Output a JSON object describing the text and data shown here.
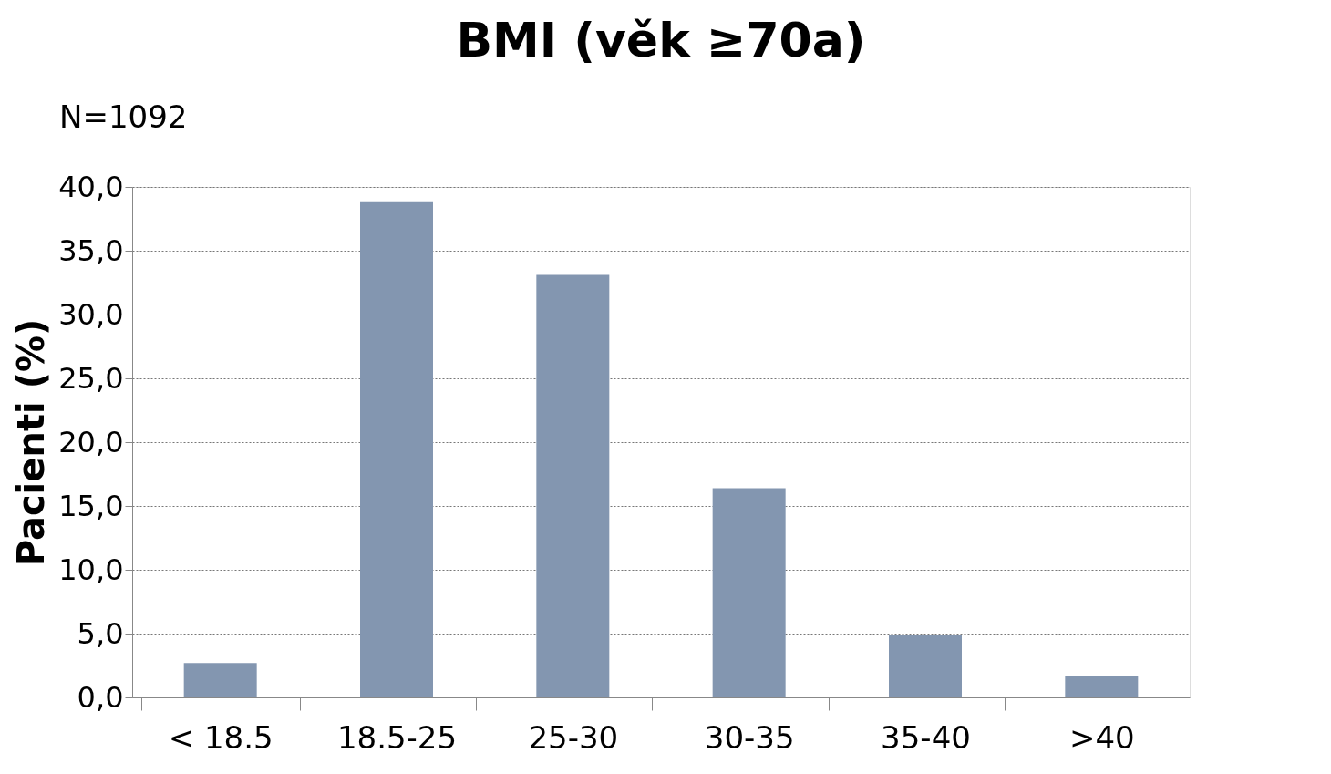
{
  "chart_data": {
    "type": "bar",
    "title": "BMI (věk ≥70a)",
    "ylabel": "Pacienti (%)",
    "annotations": [
      "N=1092"
    ],
    "categories": [
      "< 18.5",
      "18.5-25",
      "25-30",
      "30-35",
      "35-40",
      ">40"
    ],
    "values": [
      2.7,
      38.8,
      33.1,
      16.4,
      4.9,
      1.7
    ],
    "color": "#8396b0",
    "ylim": [
      0,
      40
    ],
    "yticks": [
      {
        "value": 0,
        "label": "0,0"
      },
      {
        "value": 5,
        "label": "5,0"
      },
      {
        "value": 10,
        "label": "10,0"
      },
      {
        "value": 15,
        "label": "15,0"
      },
      {
        "value": 20,
        "label": "20,0"
      },
      {
        "value": 25,
        "label": "25,0"
      },
      {
        "value": 30,
        "label": "30,0"
      },
      {
        "value": 35,
        "label": "35,0"
      },
      {
        "value": 40,
        "label": "40,0"
      }
    ],
    "grid": "y"
  }
}
